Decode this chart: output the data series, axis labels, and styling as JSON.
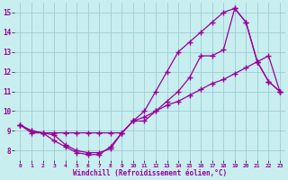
{
  "xlabel": "Windchill (Refroidissement éolien,°C)",
  "bg_color": "#c8eef0",
  "grid_color": "#9ecdd4",
  "line_color": "#990099",
  "xlim_min": -0.5,
  "xlim_max": 23.5,
  "ylim_min": 7.5,
  "ylim_max": 15.5,
  "xticks": [
    0,
    1,
    2,
    3,
    4,
    5,
    6,
    7,
    8,
    9,
    10,
    11,
    12,
    13,
    14,
    15,
    16,
    17,
    18,
    19,
    20,
    21,
    22,
    23
  ],
  "yticks": [
    8,
    9,
    10,
    11,
    12,
    13,
    14,
    15
  ],
  "line1_x": [
    0,
    1,
    2,
    3,
    4,
    5,
    6,
    7,
    8,
    9,
    10,
    11,
    12,
    13,
    14,
    15,
    16,
    17,
    18,
    19,
    20,
    21,
    22,
    23
  ],
  "line1_y": [
    9.3,
    8.9,
    8.9,
    8.5,
    8.2,
    7.9,
    7.8,
    7.8,
    8.2,
    8.9,
    9.5,
    10.0,
    11.0,
    12.0,
    13.0,
    13.5,
    14.0,
    14.5,
    15.0,
    15.2,
    14.5,
    12.5,
    11.5,
    11.0
  ],
  "line2_x": [
    0,
    1,
    2,
    3,
    4,
    5,
    6,
    7,
    8,
    9,
    10,
    11,
    12,
    13,
    14,
    15,
    16,
    17,
    18,
    19,
    20,
    21,
    22,
    23
  ],
  "line2_y": [
    9.3,
    9.0,
    8.9,
    8.8,
    8.3,
    8.0,
    7.9,
    7.9,
    8.1,
    8.9,
    9.5,
    9.5,
    10.0,
    10.5,
    11.0,
    11.7,
    12.8,
    12.8,
    13.1,
    15.2,
    14.5,
    12.5,
    11.5,
    11.0
  ],
  "line3_x": [
    0,
    1,
    2,
    3,
    4,
    5,
    6,
    7,
    8,
    9,
    10,
    11,
    12,
    13,
    14,
    15,
    16,
    17,
    18,
    19,
    20,
    21,
    22,
    23
  ],
  "line3_y": [
    9.3,
    9.0,
    8.9,
    8.9,
    8.9,
    8.9,
    8.9,
    8.9,
    8.9,
    8.9,
    9.5,
    9.7,
    10.0,
    10.3,
    10.5,
    10.8,
    11.1,
    11.4,
    11.6,
    11.9,
    12.2,
    12.5,
    12.8,
    11.0
  ]
}
